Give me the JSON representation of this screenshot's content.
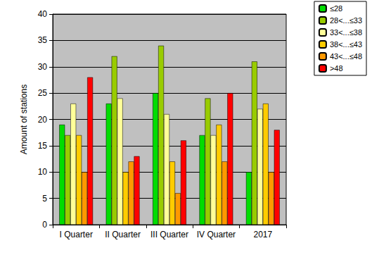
{
  "chart_data": {
    "type": "bar",
    "y_label": "Amount of stations",
    "categories": [
      "I Quarter",
      "II Quarter",
      "III Quarter",
      "IV Quarter",
      "2017"
    ],
    "series": [
      {
        "name": "≤28",
        "color": "#00DD00",
        "values": [
          19,
          23,
          25,
          17,
          10
        ]
      },
      {
        "name": "28<...≤33",
        "color": "#99CC00",
        "values": [
          17,
          32,
          34,
          24,
          31
        ]
      },
      {
        "name": "33<...≤38",
        "color": "#FFFF99",
        "values": [
          23,
          24,
          21,
          17,
          22
        ]
      },
      {
        "name": "38<...≤43",
        "color": "#FFCC00",
        "values": [
          17,
          10,
          12,
          19,
          23
        ]
      },
      {
        "name": "43<...≤48",
        "color": "#FF9900",
        "values": [
          10,
          12,
          6,
          12,
          10
        ]
      },
      {
        "name": ">48",
        "color": "#FF0000",
        "values": [
          28,
          13,
          16,
          25,
          18
        ]
      }
    ],
    "ylim": [
      0,
      40
    ],
    "yticks": [
      0,
      5,
      10,
      15,
      20,
      25,
      30,
      35,
      40
    ],
    "grid": true,
    "legend": "upper right"
  }
}
